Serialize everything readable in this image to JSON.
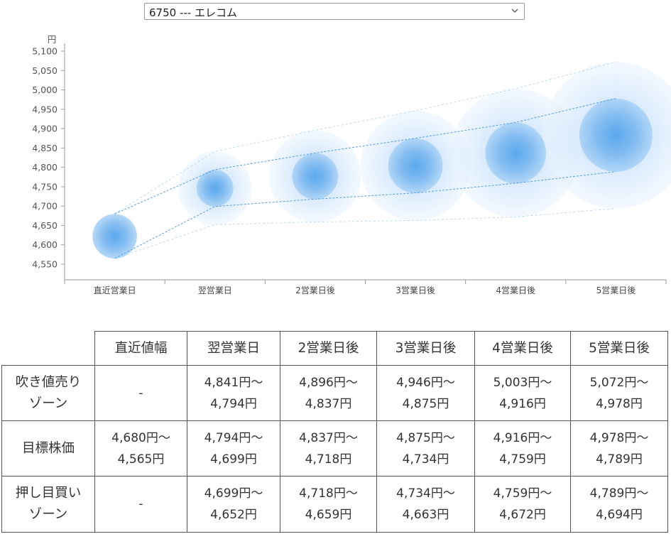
{
  "stock_select": {
    "value": "6750 --- エレコム"
  },
  "chart_data": {
    "type": "scatter",
    "y_unit": "円",
    "ylim": [
      4525,
      5100
    ],
    "y_ticks": [
      5100,
      5050,
      5000,
      4950,
      4900,
      4850,
      4800,
      4750,
      4700,
      4650,
      4600,
      4550
    ],
    "y_tick_labels": [
      "5,100",
      "5,050",
      "5,000",
      "4,950",
      "4,900",
      "4,850",
      "4,800",
      "4,750",
      "4,700",
      "4,650",
      "4,600",
      "4,550"
    ],
    "categories": [
      "直近営業日",
      "翌営業日",
      "2営業日後",
      "3営業日後",
      "4営業日後",
      "5営業日後"
    ],
    "center_values": [
      4622,
      4746,
      4777,
      4804,
      4837,
      4883
    ],
    "outer_upper": [
      null,
      4841,
      4896,
      4946,
      5003,
      5072
    ],
    "inner_upper": [
      4680,
      4794,
      4837,
      4875,
      4916,
      4978
    ],
    "inner_lower": [
      4565,
      4699,
      4718,
      4734,
      4759,
      4789
    ],
    "outer_lower": [
      null,
      4652,
      4659,
      4663,
      4672,
      4694
    ],
    "grid": false,
    "colors": {
      "bubble_core": "#5aa8ee",
      "bubble_halo": "#cfe6fb",
      "line": "#3f8fd8"
    }
  },
  "table": {
    "headers": [
      "",
      "直近値幅",
      "翌営業日",
      "2営業日後",
      "3営業日後",
      "4営業日後",
      "5営業日後"
    ],
    "rows": [
      {
        "label_line1": "吹き値売り",
        "label_line2": "ゾーン",
        "cells": [
          {
            "l1": "-",
            "l2": ""
          },
          {
            "l1": "4,841円～",
            "l2": "4,794円"
          },
          {
            "l1": "4,896円～",
            "l2": "4,837円"
          },
          {
            "l1": "4,946円～",
            "l2": "4,875円"
          },
          {
            "l1": "5,003円～",
            "l2": "4,916円"
          },
          {
            "l1": "5,072円～",
            "l2": "4,978円"
          }
        ]
      },
      {
        "label_line1": "目標株価",
        "label_line2": "",
        "cells": [
          {
            "l1": "4,680円～",
            "l2": "4,565円"
          },
          {
            "l1": "4,794円～",
            "l2": "4,699円"
          },
          {
            "l1": "4,837円～",
            "l2": "4,718円"
          },
          {
            "l1": "4,875円～",
            "l2": "4,734円"
          },
          {
            "l1": "4,916円～",
            "l2": "4,759円"
          },
          {
            "l1": "4,978円～",
            "l2": "4,789円"
          }
        ]
      },
      {
        "label_line1": "押し目買い",
        "label_line2": "ゾーン",
        "cells": [
          {
            "l1": "-",
            "l2": ""
          },
          {
            "l1": "4,699円～",
            "l2": "4,652円"
          },
          {
            "l1": "4,718円～",
            "l2": "4,659円"
          },
          {
            "l1": "4,734円～",
            "l2": "4,663円"
          },
          {
            "l1": "4,759円～",
            "l2": "4,672円"
          },
          {
            "l1": "4,789円～",
            "l2": "4,694円"
          }
        ]
      }
    ]
  }
}
